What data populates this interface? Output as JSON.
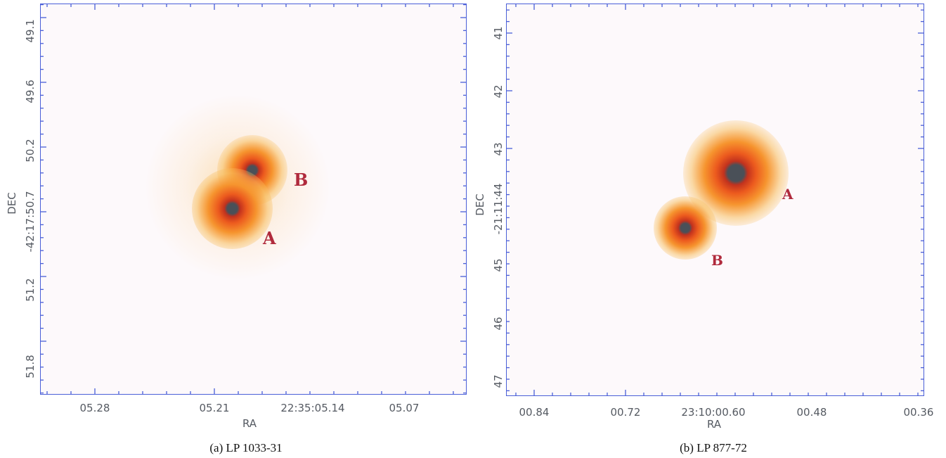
{
  "panels": [
    {
      "caption": "(a) LP 1033-31",
      "xlabel": "RA",
      "ylabel": "DEC",
      "x_ticks": [
        "05.28",
        "05.21",
        "22:35:05.14",
        "05.07"
      ],
      "y_ticks": [
        "49.1",
        "49.6",
        "50.2",
        "-42:17:50.7",
        "51.2",
        "51.8"
      ],
      "labels": {
        "A": "A",
        "B": "B"
      }
    },
    {
      "caption": "(b) LP 877-72",
      "xlabel": "RA",
      "ylabel": "DEC",
      "x_ticks": [
        "00.84",
        "00.72",
        "23:10:00.60",
        "00.48",
        "00.36"
      ],
      "y_ticks": [
        "41",
        "42",
        "43",
        "-21:11:44",
        "45",
        "46",
        "47"
      ],
      "labels": {
        "A": "A",
        "B": "B"
      }
    }
  ],
  "colors": {
    "frame": "#4a5fd8",
    "label": "#b02a3c",
    "core": "#4a5058"
  }
}
